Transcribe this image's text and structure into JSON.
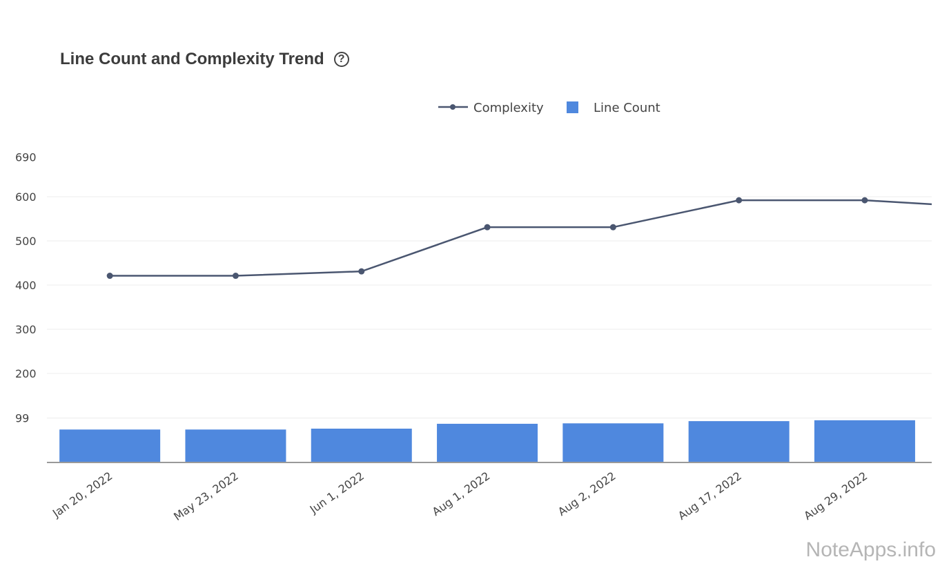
{
  "title": "Line Count and Complexity Trend",
  "help_icon": "?",
  "watermark": "NoteApps.info",
  "chart_data": {
    "type": "bar+line",
    "title": "Line Count and Complexity Trend",
    "categories": [
      "Jan 20, 2022",
      "May 23, 2022",
      "Jun 1, 2022",
      "Aug 1, 2022",
      "Aug 2, 2022",
      "Aug 17, 2022",
      "Aug 29, 2022"
    ],
    "series": [
      {
        "name": "Complexity",
        "type": "line",
        "color": "#4a5670",
        "values": [
          421,
          421,
          431,
          531,
          531,
          592,
          592
        ],
        "continues_offscreen_to": 575
      },
      {
        "name": "Line Count",
        "type": "bar",
        "color": "#4f88de",
        "values": [
          73,
          73,
          75,
          86,
          87,
          92,
          94
        ]
      }
    ],
    "yticks": [
      99,
      200,
      300,
      400,
      500,
      600,
      690
    ],
    "ylim": [
      0,
      690
    ],
    "grid": true,
    "legend_position": "top-center"
  }
}
